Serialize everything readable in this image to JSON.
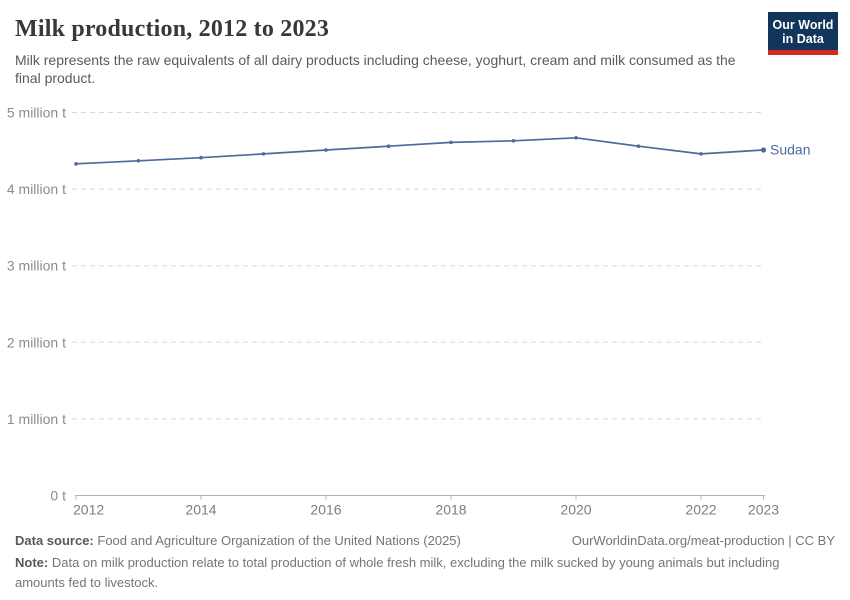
{
  "header": {
    "title": "Milk production, 2012 to 2023",
    "subtitle": "Milk represents the raw equivalents of all dairy products including cheese, yoghurt, cream and milk consumed as the final product.",
    "logo": {
      "line1": "Our World",
      "line2": "in Data",
      "bg_color": "#12355c",
      "accent_color": "#d42b21"
    }
  },
  "chart_data": {
    "type": "line",
    "title": "Milk production, 2012 to 2023",
    "x": [
      2012,
      2013,
      2014,
      2015,
      2016,
      2017,
      2018,
      2019,
      2020,
      2021,
      2022,
      2023
    ],
    "series": [
      {
        "name": "Sudan",
        "color": "#4C6A9C",
        "values": [
          4.33,
          4.37,
          4.41,
          4.46,
          4.51,
          4.56,
          4.61,
          4.63,
          4.67,
          4.56,
          4.46,
          4.51
        ],
        "unit": "million t"
      }
    ],
    "ylim": [
      0,
      5
    ],
    "y_ticks": [
      {
        "value": 0,
        "label": "0 t"
      },
      {
        "value": 1,
        "label": "1 million t"
      },
      {
        "value": 2,
        "label": "2 million t"
      },
      {
        "value": 3,
        "label": "3 million t"
      },
      {
        "value": 4,
        "label": "4 million t"
      },
      {
        "value": 5,
        "label": "5 million t"
      }
    ],
    "x_ticks": [
      2012,
      2014,
      2016,
      2018,
      2020,
      2022,
      2023
    ],
    "grid": "horizontal-dashed",
    "legend_position": "end-of-line-label",
    "colors": {
      "gridline": "#d8d8d8",
      "axis": "#b3b3b3",
      "y_tick_label": "#8c8c8c",
      "x_tick_label": "#7d7d7d"
    }
  },
  "footer": {
    "datasource_label": "Data source:",
    "datasource_value": "Food and Agriculture Organization of the United Nations (2025)",
    "attribution": "OurWorldinData.org/meat-production | CC BY",
    "note_label": "Note:",
    "note_value": "Data on milk production relate to total production of whole fresh milk, excluding the milk sucked by young animals but including amounts fed to livestock."
  }
}
